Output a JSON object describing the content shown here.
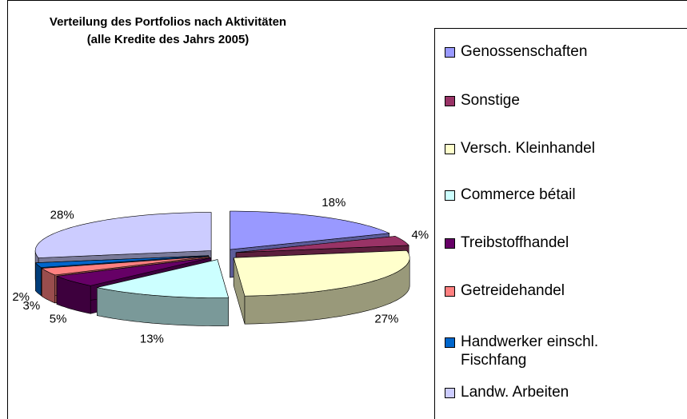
{
  "chart_data": {
    "type": "pie3d",
    "title": "Verteilung des Portfolios nach Aktivitäten",
    "subtitle": "(alle Kredite des Jahrs 2005)",
    "categories": [
      "Genossenschaften",
      "Sonstige",
      "Versch. Kleinhandel",
      "Commerce bétail",
      "Treibstoffhandel",
      "Getreidehandel",
      "Handwerker einschl. Fischfang",
      "Landw. Arbeiten"
    ],
    "values": [
      18,
      4,
      27,
      13,
      5,
      3,
      2,
      28
    ],
    "value_labels": [
      "18%",
      "4%",
      "27%",
      "13%",
      "5%",
      "3%",
      "2%",
      "28%"
    ],
    "colors": [
      "#9999ff",
      "#993366",
      "#ffffcc",
      "#ccffff",
      "#660066",
      "#ff8080",
      "#0066cc",
      "#ccccff"
    ],
    "legend": "right"
  }
}
